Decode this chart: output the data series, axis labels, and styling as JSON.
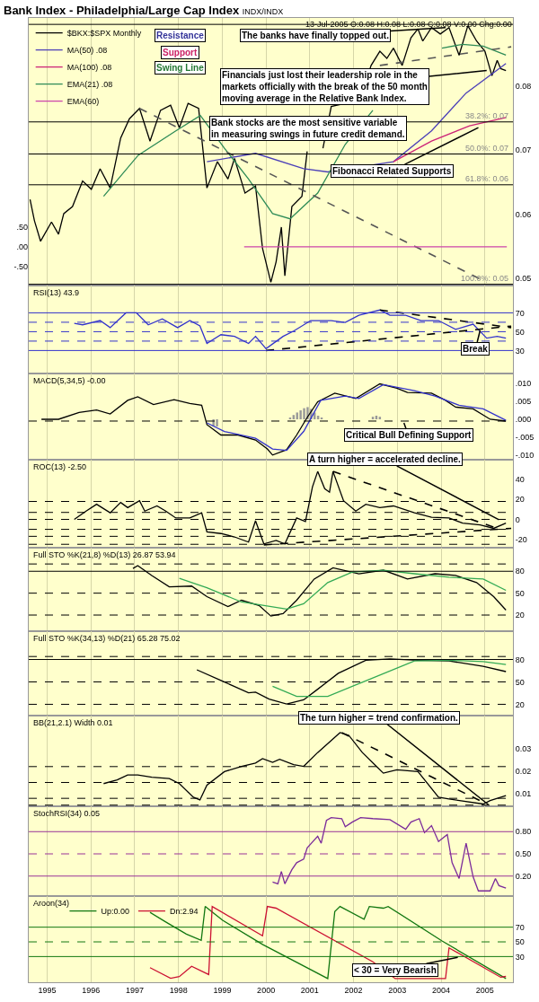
{
  "chart_data": [
    {
      "type": "line",
      "title": "Bank Index - Philadelphia/Large Cap Index",
      "subtitle": "INDX/INDX",
      "xlim": [
        1994.58,
        2005.64
      ],
      "xticks": [
        1995,
        1996,
        1997,
        1998,
        1999,
        2000,
        2001,
        2002,
        2003,
        2004,
        2005
      ],
      "ylim": [
        0.0489,
        0.0906
      ],
      "yticks": [
        0.05,
        0.06,
        0.07,
        0.08
      ],
      "y2lim": [
        -0.96,
        5.67
      ],
      "y2ticks": [
        {
          "value": 0.5,
          "label": ".50"
        },
        {
          "value": 0,
          "label": ".00"
        },
        {
          "value": -0.5,
          "label": "-.50"
        }
      ],
      "grid": true,
      "legend": "top left",
      "tick_labels": "y",
      "series": [
        {
          "name": "$BKX:$SPX Monthly",
          "color": "#000000",
          "x": [
            1994.61,
            1994.71,
            1994.85,
            1995.1,
            1995.26,
            1995.38,
            1995.58,
            1995.81,
            1996.01,
            1996.21,
            1996.44,
            1996.68,
            1996.88,
            1997.11,
            1997.35,
            1997.59,
            1997.82,
            1998.02,
            1998.22,
            1998.46,
            1998.65,
            1998.89,
            1999.13,
            1999.28,
            1999.52,
            1999.76,
            1999.92,
            2000.11,
            2000.23,
            2000.35,
            2000.43,
            2000.59,
            2000.82,
            2000.94,
            2001.1,
            2001.3,
            2001.49,
            2001.81,
            2002.12,
            2002.4,
            2002.6,
            2002.76,
            2002.91,
            2003.11,
            2003.31,
            2003.47,
            2003.58,
            2003.78,
            2003.98,
            2004.18,
            2004.41,
            2004.61,
            2004.81,
            2005.0,
            2005.16,
            2005.28,
            2005.36,
            2005.48
          ],
          "values": [
            0.0623,
            0.059,
            0.0558,
            0.0588,
            0.0569,
            0.0601,
            0.0612,
            0.0652,
            0.0639,
            0.0671,
            0.0641,
            0.0719,
            0.0749,
            0.0765,
            0.0714,
            0.0762,
            0.077,
            0.0735,
            0.0773,
            0.0765,
            0.0641,
            0.0682,
            0.0655,
            0.0687,
            0.0633,
            0.0644,
            0.0547,
            0.0494,
            0.0526,
            0.058,
            0.0504,
            0.0612,
            0.0628,
            0.0698,
            null,
            0.0703,
            0.0768,
            0.0773,
            0.0773,
            0.0832,
            0.0854,
            0.0843,
            0.0859,
            0.0832,
            0.0875,
            0.0889,
            0.087,
            0.0891,
            0.0881,
            0.0891,
            0.0848,
            0.0894,
            0.087,
            0.0854,
            0.0816,
            0.084,
            0.0827,
            0.0824
          ]
        },
        {
          "name": "MA(50) .08",
          "color": "#4b3fb8",
          "x": [
            1998.65,
            1999.76,
            2000.86,
            2001.41,
            2002.91,
            2003.78,
            2004.57,
            2005.48
          ],
          "values": [
            0.0682,
            0.0695,
            0.0671,
            0.0666,
            0.0682,
            0.073,
            0.0789,
            0.0835
          ]
        },
        {
          "name": "MA(100) .08",
          "color": "#cc2277",
          "x": [
            2002.91,
            2003.78,
            2004.65,
            2005.48
          ],
          "values": [
            0.0682,
            0.0714,
            0.0738,
            0.0751
          ]
        },
        {
          "name": "EMA(21) .08",
          "color": "#2e8b57",
          "x": [
            1996.29,
            1997.08,
            1997.94,
            1998.5,
            1999.05,
            1999.6,
            2000.15,
            2000.55,
            2001.18,
            2001.81,
            2002.44,
            2003.23,
            2004.02,
            2004.49,
            2004.96,
            2005.48
          ],
          "values": [
            0.0628,
            0.0692,
            0.073,
            0.0754,
            0.0703,
            0.0655,
            0.0601,
            0.0593,
            0.0633,
            0.0709,
            0.0762,
            null,
            0.0859,
            0.0865,
            0.0862,
            0.0848
          ]
        },
        {
          "name": "EMA(60)",
          "color": "#cc44aa",
          "axis": "y2",
          "x": [
            1999.5,
            2005.5
          ],
          "values": [
            0,
            0
          ]
        },
        {
          "color": "#555555",
          "line_style": "dashed",
          "x": [
            1997.11,
            2005.04
          ],
          "values": [
            0.0765,
            0.0494
          ]
        },
        {
          "color": "#555555",
          "line_style": "dashed",
          "x": [
            2002.6,
            2005.6
          ],
          "values": [
            0.0832,
            0.0861
          ]
        }
      ],
      "ref_lines": [
        {
          "axis": "y",
          "value": 0.0896,
          "color": "#000000"
        },
        {
          "axis": "y",
          "value": 0.0744,
          "label": "38.2%: 0.07",
          "color": "#000000"
        },
        {
          "axis": "y",
          "value": 0.0694,
          "label": "50.0%: 0.07",
          "color": "#000000"
        },
        {
          "axis": "y",
          "value": 0.0646,
          "label": "61.8%: 0.06",
          "color": "#000000"
        },
        {
          "axis": "y",
          "value": 0.0491,
          "label": "100.0%: 0.05",
          "color": "#000000"
        }
      ],
      "annotations": [
        "Resistance",
        "Support",
        "Swing Line",
        {
          "text": "The banks have finally topped out.",
          "x": 2004.1,
          "y": 0.0891
        },
        {
          "text": "Financials just lost their leadership role in the markets officially with the break of the 50 month moving average in the Relative Bank Index.",
          "x": 2005.04,
          "y": 0.0824
        },
        "Bank stocks are the most sensitive variable in measuring swings in future credit demand.",
        {
          "text": "Fibonacci Related Supports",
          "x": 2004.85,
          "y": 0.0735
        },
        "13-Jul-2005 O:0.08 H:0.08 L:0.08 C:0.08 V:0.00 Chg:0.00"
      ]
    },
    {
      "type": "line",
      "title": "RSI(13) 43.9",
      "xlim": [
        1994.58,
        2005.64
      ],
      "xticks": [
        1995,
        1996,
        1997,
        1998,
        1999,
        2000,
        2001,
        2002,
        2003,
        2004,
        2005
      ],
      "ylim": [
        5.6,
        99
      ],
      "yticks": [
        30,
        50,
        70
      ],
      "grid": true,
      "tick_labels": "y",
      "series": [
        {
          "color": "#3333cc",
          "x": [
            1995.62,
            1995.81,
            1996.21,
            1996.44,
            1996.8,
            1997.04,
            1997.31,
            1997.63,
            1997.98,
            1998.26,
            1998.49,
            1998.65,
            1998.97,
            1999.28,
            1999.6,
            1999.76,
            2000.0,
            2000.39,
            2000.63,
            2001.02,
            2001.49,
            2001.81,
            2002.12,
            2002.6,
            2002.83,
            2003.19,
            2003.54,
            2003.94,
            2004.33,
            2004.73,
            2005.04,
            2005.28,
            2005.48
          ],
          "values": [
            58.8,
            57.3,
            61.8,
            54.3,
            70,
            70,
            57.3,
            63.6,
            54.3,
            61.8,
            56.2,
            37.5,
            46.8,
            45,
            37.5,
            45,
            31.9,
            45,
            50.6,
            61.8,
            61.8,
            59.9,
            67.4,
            73,
            67.4,
            67.4,
            61.8,
            61.8,
            52.4,
            58,
            43.1,
            45,
            43.1
          ]
        },
        {
          "color": "#000000",
          "line_style": "dashed",
          "x": [
            2000.0,
            2005.6
          ],
          "values": [
            30,
            55.9
          ]
        },
        {
          "color": "#000000",
          "line_style": "dashed",
          "x": [
            2002.6,
            2005.6
          ],
          "values": [
            73,
            54.3
          ]
        }
      ],
      "ref_lines": [
        {
          "axis": "y",
          "value": 70,
          "color": "#3333cc"
        },
        {
          "axis": "y",
          "value": 60,
          "color": "#3333cc",
          "line_style": "dashed"
        },
        {
          "axis": "y",
          "value": 50,
          "color": "#3333cc",
          "line_style": "dashed"
        },
        {
          "axis": "y",
          "value": 40,
          "color": "#3333cc",
          "line_style": "dashed"
        },
        {
          "axis": "y",
          "value": 30,
          "color": "#3333cc"
        }
      ],
      "annotations": [
        {
          "text": "Break",
          "x": 2004.89,
          "y": 51.3
        }
      ]
    },
    {
      "type": "line",
      "title": "MACD(5,34,5) -0.00",
      "xlim": [
        1994.58,
        2005.64
      ],
      "xticks": [
        1995,
        1996,
        1997,
        1998,
        1999,
        2000,
        2001,
        2002,
        2003,
        2004,
        2005
      ],
      "ylim": [
        -0.0113,
        0.0128
      ],
      "yticks": [
        {
          "value": -0.01,
          "label": "-.010"
        },
        {
          "value": -0.005,
          "label": "-.005"
        },
        {
          "value": 0,
          "label": ".000"
        },
        {
          "value": 0.005,
          "label": ".005"
        },
        {
          "value": 0.01,
          "label": ".010"
        }
      ],
      "grid": true,
      "tick_labels": "y",
      "series": [
        {
          "type": "bar",
          "color": "#999999",
          "x": [
            1998.8,
            1998.88,
            2000.55,
            2000.63,
            2000.71,
            2000.79,
            2000.87,
            2000.95,
            2001.03,
            2001.11,
            2001.19,
            2001.27,
            2002.44,
            2002.52,
            2002.6
          ],
          "values": [
            -0.002,
            -0.002,
            0.0005,
            0.0012,
            0.0019,
            0.0025,
            0.0031,
            0.0034,
            0.0029,
            0.0019,
            0.001,
            0.0005,
            0.0007,
            0.001,
            0.0007
          ]
        },
        {
          "color": "#000000",
          "x": [
            1994.87,
            1995.26,
            1995.73,
            1996.13,
            1996.44,
            1996.84,
            1997.07,
            1997.43,
            1997.9,
            1998.26,
            1998.53,
            1998.65,
            1998.97,
            1999.36,
            1999.76,
            2000.03,
            2000.15,
            2000.47,
            2000.7,
            2000.94,
            2001.18,
            2001.57,
            2002.05,
            2002.6,
            2002.99,
            2003.23,
            2003.78,
            2004.1,
            2004.33,
            2004.73,
            2005.12,
            2005.48
          ],
          "values": [
            0,
            0,
            0.0019,
            0.0026,
            0.0015,
            0.0053,
            0.0063,
            0.0041,
            0.0055,
            0.0044,
            0.0039,
            -0.0015,
            -0.0044,
            -0.0044,
            -0.0058,
            -0.0083,
            -0.01,
            -0.0085,
            -0.0044,
            0.0005,
            0.0049,
            0.0073,
            0.0058,
            0.0099,
            0.0087,
            0.0075,
            0.0073,
            0.0053,
            0.0034,
            0.0029,
            0,
            -0.0005
          ]
        },
        {
          "color": "#3333cc",
          "x": [
            1998.65,
            1999.05,
            1999.76,
            2000.15,
            2000.47,
            2000.86,
            2001.25,
            2001.81,
            2002.12,
            2002.68,
            2003.39,
            2003.86,
            2004.41,
            2004.96,
            2005.48
          ],
          "values": [
            -0.001,
            -0.0034,
            -0.0053,
            -0.0083,
            -0.0087,
            -0.0034,
            0.0053,
            0.0065,
            0.0058,
            0.0097,
            0.008,
            0.0065,
            0.0039,
            0.0029,
            -0.0003
          ]
        }
      ],
      "ref_lines": [
        {
          "axis": "y",
          "value": -0.0005,
          "color": "#000000",
          "line_style": "dashed"
        }
      ],
      "annotations": [
        {
          "text": "Critical Bull Defining Support",
          "x": 2003.15,
          "y": -0.001
        }
      ]
    },
    {
      "type": "line",
      "title": "ROC(13) -2.50",
      "xlim": [
        1994.58,
        2005.64
      ],
      "xticks": [
        1995,
        1996,
        1997,
        1998,
        1999,
        2000,
        2001,
        2002,
        2003,
        2004,
        2005
      ],
      "ylim": [
        -28.4,
        59.9
      ],
      "yticks": [
        -20,
        0,
        20,
        40
      ],
      "grid": true,
      "tick_labels": "y",
      "series": [
        {
          "color": "#000000",
          "x": [
            1995.62,
            1995.89,
            1996.13,
            1996.44,
            1996.68,
            1996.84,
            1997.11,
            1997.23,
            1997.51,
            1997.71,
            1997.94,
            1998.26,
            1998.53,
            1998.65,
            1998.97,
            1999.28,
            1999.6,
            1999.76,
            1999.95,
            2000.23,
            2000.43,
            2000.7,
            2000.9,
            2001.06,
            2001.18,
            2001.34,
            2001.45,
            2001.53,
            2001.77,
            2002.05,
            2002.28,
            2002.6,
            2002.91,
            2003.39,
            2003.78,
            2004.18,
            2004.49,
            2004.89,
            2005.2,
            2005.48
          ],
          "values": [
            0,
            8.3,
            15.2,
            6.6,
            17,
            11.8,
            18.7,
            8.3,
            13.5,
            8.3,
            1.4,
            1.4,
            6.6,
            -12.5,
            -14.2,
            -17.6,
            -22.8,
            -1.4,
            -24.6,
            -21.1,
            -24.6,
            1.4,
            -2.1,
            32.5,
            48.1,
            30.8,
            27.3,
            48.1,
            18.7,
            8.3,
            15.2,
            11.8,
            13.5,
            6.6,
            2.1,
            1.4,
            -3.8,
            -5.5,
            -9,
            -3.8
          ]
        },
        {
          "color": "#000000",
          "line_style": "dashed",
          "x": [
            2001.53,
            2005.28
          ],
          "values": [
            48.1,
            -9
          ]
        },
        {
          "color": "#000000",
          "line_style": "dashed",
          "x": [
            1999.95,
            2005.6
          ],
          "values": [
            -25.6,
            -9
          ]
        }
      ],
      "ref_lines": [
        {
          "axis": "y",
          "value": 18,
          "color": "#000000",
          "line_style": "dashed"
        },
        {
          "axis": "y",
          "value": 7,
          "color": "#000000",
          "line_style": "dashed"
        },
        {
          "axis": "y",
          "value": 0,
          "color": "#000000",
          "line_style": "dashed"
        },
        {
          "axis": "y",
          "value": -10,
          "color": "#000000",
          "line_style": "dashed"
        },
        {
          "axis": "y",
          "value": -17,
          "color": "#000000",
          "line_style": "dashed"
        },
        {
          "axis": "y",
          "value": -25,
          "color": "#000000",
          "line_style": "dashed"
        }
      ],
      "annotations": [
        {
          "text": "A turn higher = accelerated decline.",
          "x": 2005.32,
          "y": -0.3
        }
      ]
    },
    {
      "type": "line",
      "title": "Full STO %K(21,8) %D(13) 26.87 53.94",
      "xlim": [
        1994.58,
        2005.64
      ],
      "xticks": [
        1995,
        1996,
        1997,
        1998,
        1999,
        2000,
        2001,
        2002,
        2003,
        2004,
        2005
      ],
      "ylim": [
        -2.1,
        112.3
      ],
      "yticks": [
        20,
        50,
        80
      ],
      "grid": true,
      "tick_labels": "y",
      "series": [
        {
          "color": "#000000",
          "x": [
            1996.96,
            1997.07,
            1997.39,
            1997.79,
            1998.3,
            1998.65,
            1999.13,
            1999.44,
            1999.84,
            2000.11,
            2000.39,
            2000.7,
            2001.1,
            2001.53,
            2002.12,
            2002.68,
            2003.23,
            2003.86,
            2004.33,
            2004.81,
            2005.2,
            2005.48
          ],
          "values": [
            83.9,
            87.7,
            74.2,
            58.7,
            59.7,
            45.2,
            31.6,
            40.3,
            33.1,
            18.6,
            22,
            40.3,
            69.4,
            84.8,
            76.6,
            81.5,
            69.4,
            76.6,
            74.2,
            64.5,
            45.2,
            26.8
          ]
        },
        {
          "color": "#33aa55",
          "x": [
            1998.02,
            1998.65,
            1999.44,
            2000.47,
            2000.86,
            2001.41,
            2001.97,
            2002.68,
            2003.39,
            2004.18,
            2004.96,
            2005.48
          ],
          "values": [
            70.3,
            57.3,
            37.9,
            28.2,
            35.5,
            64.5,
            79,
            81.5,
            76.6,
            71.8,
            69.4,
            53.9
          ]
        }
      ],
      "ref_lines": [
        {
          "axis": "y",
          "value": 90,
          "color": "#000000",
          "line_style": "dashed"
        },
        {
          "axis": "y",
          "value": 80,
          "color": "#000000"
        },
        {
          "axis": "y",
          "value": 50,
          "color": "#000000",
          "line_style": "dashed"
        },
        {
          "axis": "y",
          "value": 20,
          "color": "#000000",
          "line_style": "dashed"
        }
      ]
    },
    {
      "type": "line",
      "title": "Full STO %K(34,13) %D(21) 65.28 75.02",
      "xlim": [
        1994.58,
        2005.64
      ],
      "xticks": [
        1995,
        1996,
        1997,
        1998,
        1999,
        2000,
        2001,
        2002,
        2003,
        2004,
        2005
      ],
      "ylim": [
        4.9,
        117.9
      ],
      "yticks": [
        20,
        50,
        80
      ],
      "grid": true,
      "tick_labels": "y",
      "series": [
        {
          "color": "#000000",
          "x": [
            1998.42,
            1998.97,
            1999.6,
            1999.76,
            2000.07,
            2000.47,
            2000.86,
            2001.18,
            2001.65,
            2002.28,
            2002.83,
            2003.47,
            2004.18,
            2004.96,
            2005.48
          ],
          "values": [
            66.2,
            52,
            35.4,
            36.4,
            26.9,
            20.3,
            26,
            40.2,
            61.5,
            79,
            80.9,
            79,
            78,
            70.9,
            63.8
          ]
        },
        {
          "color": "#33aa55",
          "x": [
            2000.15,
            2000.7,
            2001.41,
            2002.2,
            2003.39,
            2004.18,
            2004.96,
            2005.48
          ],
          "values": [
            44,
            30.7,
            30.7,
            49.6,
            78,
            79,
            77.1,
            73.3
          ]
        }
      ],
      "ref_lines": [
        {
          "axis": "y",
          "value": 84,
          "color": "#000000",
          "line_style": "dashed"
        },
        {
          "axis": "y",
          "value": 80,
          "color": "#000000"
        },
        {
          "axis": "y",
          "value": 50,
          "color": "#000000",
          "line_style": "dashed"
        },
        {
          "axis": "y",
          "value": 20,
          "color": "#000000",
          "line_style": "dashed"
        }
      ]
    },
    {
      "type": "line",
      "title": "BB(21,2.1) Width 0.01",
      "xlim": [
        1994.58,
        2005.64
      ],
      "xticks": [
        1995,
        1996,
        1997,
        1998,
        1999,
        2000,
        2001,
        2002,
        2003,
        2004,
        2005
      ],
      "ylim": [
        0.0045,
        0.0445
      ],
      "yticks": [
        0.01,
        0.02,
        0.03
      ],
      "grid": true,
      "tick_labels": "y",
      "series": [
        {
          "color": "#000000",
          "x": [
            1996.29,
            1996.6,
            1996.84,
            1997.07,
            1997.39,
            1997.79,
            1998.02,
            1998.34,
            1998.49,
            1998.65,
            1999.05,
            1999.44,
            1999.76,
            1999.92,
            2000.15,
            2000.31,
            2000.63,
            2000.86,
            2001.18,
            2001.69,
            2001.89,
            2002.2,
            2002.52,
            2002.68,
            2002.99,
            2003.47,
            2003.94,
            2004.18,
            2004.96,
            2005.12,
            2005.48
          ],
          "values": [
            0.0145,
            0.0161,
            0.0183,
            0.0183,
            0.0173,
            0.0167,
            0.0145,
            0.0085,
            0.0073,
            0.0138,
            0.0198,
            0.0221,
            0.0236,
            0.0255,
            0.0239,
            0.0252,
            0.0229,
            0.0221,
            0.0282,
            0.037,
            0.0358,
            0.0282,
            0.0221,
            0.0191,
            0.0206,
            0.0198,
            0.0085,
            0.0077,
            0.0055,
            0.007,
            0.0092
          ]
        },
        {
          "color": "#000000",
          "line_style": "dashed",
          "x": [
            2001.73,
            2005.04
          ],
          "values": [
            0.037,
            0.0055
          ]
        }
      ],
      "ref_lines": [
        {
          "axis": "y",
          "value": 0.022,
          "color": "#000000",
          "line_style": "dashed"
        },
        {
          "axis": "y",
          "value": 0.015,
          "color": "#000000",
          "line_style": "dashed"
        },
        {
          "axis": "y",
          "value": 0.008,
          "color": "#000000",
          "line_style": "dashed"
        },
        {
          "axis": "y",
          "value": 0.005,
          "color": "#000000",
          "line_style": "dashed"
        }
      ],
      "annotations": [
        {
          "text": "The turn higher = trend confirmation.",
          "x": 2005.08,
          "y": 0.0052
        }
      ]
    },
    {
      "type": "line",
      "title": "StochRSI(34) 0.05",
      "xlim": [
        1994.58,
        2005.64
      ],
      "xticks": [
        1995,
        1996,
        1997,
        1998,
        1999,
        2000,
        2001,
        2002,
        2003,
        2004,
        2005
      ],
      "ylim": [
        -0.07,
        1.143
      ],
      "yticks": [
        {
          "value": 0.2,
          "label": "0.20"
        },
        {
          "value": 0.5,
          "label": "0.50"
        },
        {
          "value": 0.8,
          "label": "0.80"
        }
      ],
      "grid": true,
      "tick_labels": "y",
      "series": [
        {
          "color": "#7a2a9a",
          "x": [
            2000.15,
            2000.27,
            2000.35,
            2000.43,
            2000.59,
            2000.7,
            2000.86,
            2000.94,
            2001.18,
            2001.26,
            2001.38,
            2001.49,
            2001.73,
            2001.81,
            2001.97,
            2002.16,
            2002.44,
            2002.83,
            2003.19,
            2003.31,
            2003.5,
            2003.62,
            2003.78,
            2003.94,
            2004.14,
            2004.25,
            2004.41,
            2004.57,
            2004.73,
            2004.85,
            2005.12,
            2005.24,
            2005.32,
            2005.48
          ],
          "values": [
            0.119,
            0.095,
            0.262,
            0.095,
            0.286,
            0.381,
            0.429,
            0.581,
            0.738,
            0.643,
            0.952,
            0.99,
            0.976,
            0.867,
            0.929,
            0.99,
            0.976,
            0.962,
            0.833,
            0.929,
            0.976,
            0.786,
            0.881,
            0.667,
            0.762,
            0.381,
            0.167,
            0.643,
            0.19,
            0.0,
            0.0,
            0.167,
            0.071,
            0.038
          ]
        }
      ],
      "ref_lines": [
        {
          "axis": "y",
          "value": 0.8,
          "color": "#993399"
        },
        {
          "axis": "y",
          "value": 0.5,
          "color": "#993399",
          "line_style": "dashed"
        },
        {
          "axis": "y",
          "value": 0.2,
          "color": "#993399"
        }
      ]
    },
    {
      "type": "line",
      "title": "Aroon(34)",
      "xlim": [
        1994.58,
        2005.64
      ],
      "xticks": [
        1995,
        1996,
        1997,
        1998,
        1999,
        2000,
        2001,
        2002,
        2003,
        2004,
        2005
      ],
      "ylim": [
        -5,
        112.4
      ],
      "yticks": [
        30,
        50,
        70
      ],
      "grid": true,
      "legend": "top left",
      "series": [
        {
          "name": "Up:0.00",
          "color": "#117711",
          "x": [
            1997.35,
            1997.71,
            1998.18,
            1998.52,
            1998.61,
            1999.01,
            1999.92,
            2001.41,
            2001.57,
            2001.69,
            2002.24,
            2002.36,
            2002.68,
            2002.79,
            2004.02,
            2005.48
          ],
          "values": [
            90.2,
            77.1,
            60.6,
            52.1,
            98.2,
            79.4,
            46.5,
            0,
            91.2,
            98.2,
            80.8,
            98.2,
            95.9,
            98.2,
            51.2,
            0
          ]
        },
        {
          "name": "Dn:2.94",
          "color": "#cc1133",
          "x": [
            1997.35,
            1997.82,
            1998.02,
            1998.3,
            1998.69,
            1998.77,
            1999.92,
            2000.03,
            2000.23,
            2002.44,
            2002.95,
            2004.1,
            2004.18,
            2005.36,
            2005.48
          ],
          "values": [
            14.9,
            0.4,
            2.7,
            16.8,
            5.5,
            98.2,
            58.2,
            98.2,
            95.9,
            22.9,
            0,
            0,
            41.8,
            1.8,
            2.94
          ]
        }
      ],
      "ref_lines": [
        {
          "axis": "y",
          "value": 70,
          "color": "#117711"
        },
        {
          "axis": "y",
          "value": 50,
          "color": "#117711",
          "line_style": "dashed"
        },
        {
          "axis": "y",
          "value": 30,
          "color": "#117711"
        }
      ],
      "annotations": [
        {
          "text": "< 30 = Very Bearish",
          "x": 2004.38,
          "y": 29
        }
      ]
    }
  ]
}
